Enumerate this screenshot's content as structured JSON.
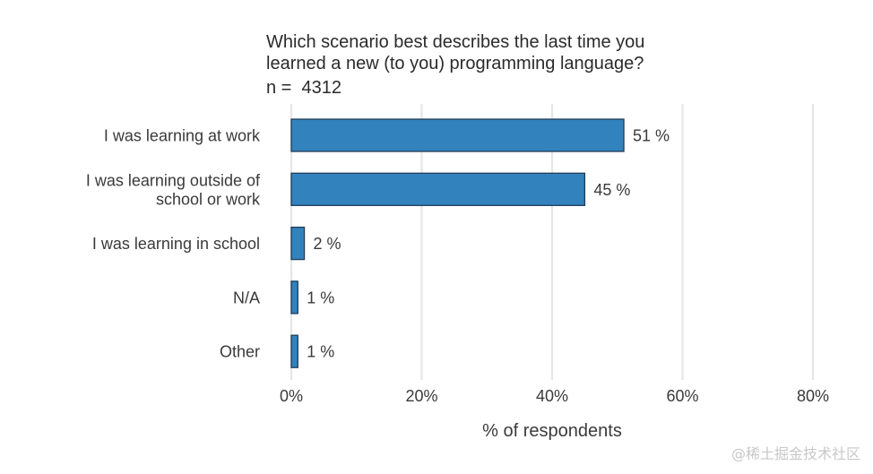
{
  "chart_data": {
    "type": "bar",
    "orientation": "horizontal",
    "title_lines": [
      "Which scenario best describes the last time you",
      "learned a new (to you) programming language?"
    ],
    "subtitle": "n =  4312",
    "categories": [
      "I was learning at work",
      "I was learning outside of school or work",
      "I was learning in school",
      "N/A",
      "Other"
    ],
    "category_label_lines": [
      [
        "I was learning at work"
      ],
      [
        "I was learning outside of",
        "school or work"
      ],
      [
        "I was learning in school"
      ],
      [
        "N/A"
      ],
      [
        "Other"
      ]
    ],
    "values": [
      51,
      45,
      2,
      1,
      1
    ],
    "value_labels": [
      "51 %",
      "45 %",
      "2 %",
      "1 %",
      "1 %"
    ],
    "xlabel": "% of respondents",
    "ylabel": "",
    "xlim": [
      0,
      80
    ],
    "xticks": [
      0,
      20,
      40,
      60,
      80
    ],
    "xtick_labels": [
      "0%",
      "20%",
      "40%",
      "60%",
      "80%"
    ],
    "grid": "vertical",
    "bar_color": "#3282be",
    "bar_edge_color": "#1f3d57",
    "grid_color": "#e6e6e6"
  },
  "watermark": "@稀土掘金技术社区"
}
